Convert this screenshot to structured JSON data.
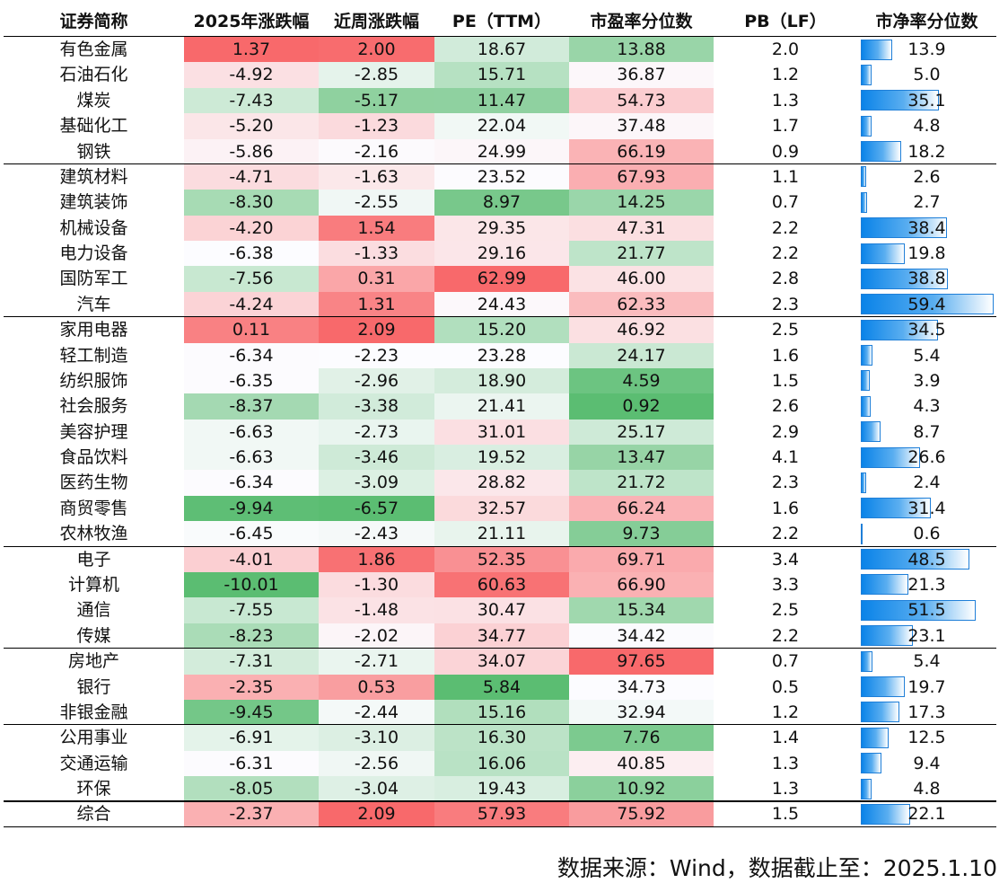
{
  "chart_data": {
    "type": "table",
    "columns": [
      "证券简称",
      "2025年涨跌幅",
      "近周涨跌幅",
      "PE（TTM）",
      "市盈率分位数",
      "PB（LF）",
      "市净率分位数"
    ],
    "groups": [
      5,
      6,
      9,
      4,
      3,
      3,
      1
    ],
    "rows": [
      [
        "有色金属",
        "1.37",
        "2.00",
        "18.67",
        "13.88",
        "2.0",
        "13.9"
      ],
      [
        "石油石化",
        "-4.92",
        "-2.85",
        "15.71",
        "36.87",
        "1.2",
        "5.0"
      ],
      [
        "煤炭",
        "-7.43",
        "-5.17",
        "11.47",
        "54.73",
        "1.3",
        "35.1"
      ],
      [
        "基础化工",
        "-5.20",
        "-1.23",
        "22.04",
        "37.48",
        "1.7",
        "4.8"
      ],
      [
        "钢铁",
        "-5.86",
        "-2.16",
        "24.99",
        "66.19",
        "0.9",
        "18.2"
      ],
      [
        "建筑材料",
        "-4.71",
        "-1.63",
        "23.52",
        "67.93",
        "1.1",
        "2.6"
      ],
      [
        "建筑装饰",
        "-8.30",
        "-2.55",
        "8.97",
        "14.25",
        "0.7",
        "2.7"
      ],
      [
        "机械设备",
        "-4.20",
        "1.54",
        "29.35",
        "47.31",
        "2.2",
        "38.4"
      ],
      [
        "电力设备",
        "-6.38",
        "-1.33",
        "29.16",
        "21.77",
        "2.2",
        "19.8"
      ],
      [
        "国防军工",
        "-7.56",
        "0.31",
        "62.99",
        "46.00",
        "2.8",
        "38.8"
      ],
      [
        "汽车",
        "-4.24",
        "1.31",
        "24.43",
        "62.33",
        "2.3",
        "59.4"
      ],
      [
        "家用电器",
        "0.11",
        "2.09",
        "15.20",
        "46.92",
        "2.5",
        "34.5"
      ],
      [
        "轻工制造",
        "-6.34",
        "-2.23",
        "23.28",
        "24.17",
        "1.6",
        "5.4"
      ],
      [
        "纺织服饰",
        "-6.35",
        "-2.96",
        "18.90",
        "4.59",
        "1.5",
        "3.9"
      ],
      [
        "社会服务",
        "-8.37",
        "-3.38",
        "21.41",
        "0.92",
        "2.6",
        "4.3"
      ],
      [
        "美容护理",
        "-6.63",
        "-2.73",
        "31.01",
        "25.17",
        "2.9",
        "8.7"
      ],
      [
        "食品饮料",
        "-6.63",
        "-3.46",
        "19.52",
        "13.47",
        "4.1",
        "26.6"
      ],
      [
        "医药生物",
        "-6.34",
        "-3.09",
        "28.82",
        "21.72",
        "2.3",
        "2.4"
      ],
      [
        "商贸零售",
        "-9.94",
        "-6.57",
        "32.57",
        "66.24",
        "1.6",
        "31.4"
      ],
      [
        "农林牧渔",
        "-6.45",
        "-2.43",
        "21.11",
        "9.73",
        "2.2",
        "0.6"
      ],
      [
        "电子",
        "-4.01",
        "1.86",
        "52.35",
        "69.71",
        "3.4",
        "48.5"
      ],
      [
        "计算机",
        "-10.01",
        "-1.30",
        "60.63",
        "66.90",
        "3.3",
        "21.3"
      ],
      [
        "通信",
        "-7.55",
        "-1.48",
        "30.47",
        "15.34",
        "2.5",
        "51.5"
      ],
      [
        "传媒",
        "-8.23",
        "-2.02",
        "34.77",
        "34.42",
        "2.2",
        "23.1"
      ],
      [
        "房地产",
        "-7.31",
        "-2.71",
        "34.07",
        "97.65",
        "0.7",
        "5.4"
      ],
      [
        "银行",
        "-2.35",
        "0.53",
        "5.84",
        "34.73",
        "0.5",
        "19.7"
      ],
      [
        "非银金融",
        "-9.45",
        "-2.44",
        "15.16",
        "32.94",
        "1.2",
        "17.3"
      ],
      [
        "公用事业",
        "-6.91",
        "-3.10",
        "16.30",
        "7.76",
        "1.4",
        "12.5"
      ],
      [
        "交通运输",
        "-6.31",
        "-2.56",
        "16.06",
        "40.85",
        "1.3",
        "9.4"
      ],
      [
        "环保",
        "-8.05",
        "-3.04",
        "19.43",
        "10.92",
        "1.3",
        "4.8"
      ],
      [
        "综合",
        "-2.37",
        "2.09",
        "57.93",
        "75.92",
        "1.5",
        "22.1"
      ]
    ],
    "heatmap_columns": [
      1,
      2,
      3,
      4
    ],
    "heatmap_colors": {
      "low": "#5bbd72",
      "mid": "#fcfcff",
      "high": "#f8696b"
    },
    "databar_column": 6,
    "databar_color": "#0a83e8"
  },
  "footer": "数据来源：Wind，数据截止至：2025.1.10"
}
